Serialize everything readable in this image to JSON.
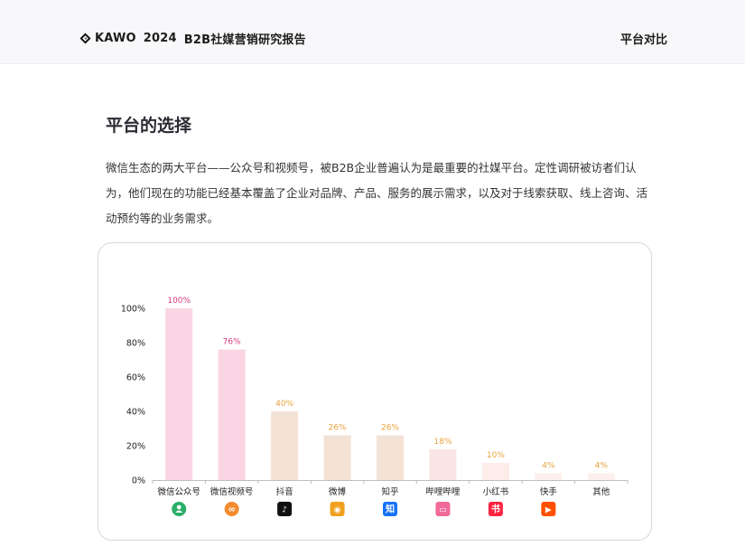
{
  "header": {
    "brand_name": "KAWO",
    "year": "2024",
    "report_title": "B2B社媒营销研究报告",
    "section_link": "平台对比"
  },
  "main": {
    "title": "平台的选择",
    "paragraph": "微信生态的两大平台——公众号和视频号，被B2B企业普遍认为是最重要的社媒平台。定性调研被访者们认为，他们现在的功能已经基本覆盖了企业对品牌、产品、服务的展示需求，以及对于线索获取、线上咨询、活动预约等的业务需求。"
  },
  "chart_data": {
    "type": "bar",
    "categories": [
      "微信公众号",
      "微信视频号",
      "抖音",
      "微博",
      "知乎",
      "哔哩哔哩",
      "小红书",
      "快手",
      "其他"
    ],
    "values": [
      100,
      76,
      40,
      26,
      26,
      18,
      10,
      4,
      4
    ],
    "data_labels": [
      "100%",
      "76%",
      "40%",
      "26%",
      "26%",
      "18%",
      "10%",
      "4%",
      "4%"
    ],
    "yticks": [
      "0%",
      "20%",
      "40%",
      "60%",
      "80%",
      "100%"
    ],
    "ylim": [
      0,
      100
    ],
    "bar_colors": [
      "#fad6e4",
      "#fad6e4",
      "#f4e2d5",
      "#f4e2d5",
      "#f4e2d5",
      "#f9e6e4",
      "#fcecea",
      "#fdf0ec",
      "#fdf0ec"
    ],
    "label_colors": [
      "#d63a7a",
      "#d63a7a",
      "#e8a43c",
      "#e8a43c",
      "#e8a43c",
      "#e8a43c",
      "#e8a43c",
      "#e8a43c",
      "#e8a43c"
    ],
    "icons": [
      {
        "name": "wechat-official-account-icon",
        "color": "#2aae67",
        "glyph": "●"
      },
      {
        "name": "wechat-channels-icon",
        "color": "#f28b2f",
        "glyph": "∞"
      },
      {
        "name": "douyin-icon",
        "color": "#111111",
        "glyph": "♪"
      },
      {
        "name": "weibo-icon",
        "color": "#f0a020",
        "glyph": "◉"
      },
      {
        "name": "zhihu-icon",
        "color": "#1772f6",
        "glyph": "知"
      },
      {
        "name": "bilibili-icon",
        "color": "#f06a9a",
        "glyph": "▭"
      },
      {
        "name": "xiaohongshu-icon",
        "color": "#ff2442",
        "glyph": "书"
      },
      {
        "name": "kuaishou-icon",
        "color": "#ff5000",
        "glyph": "▶"
      }
    ]
  }
}
